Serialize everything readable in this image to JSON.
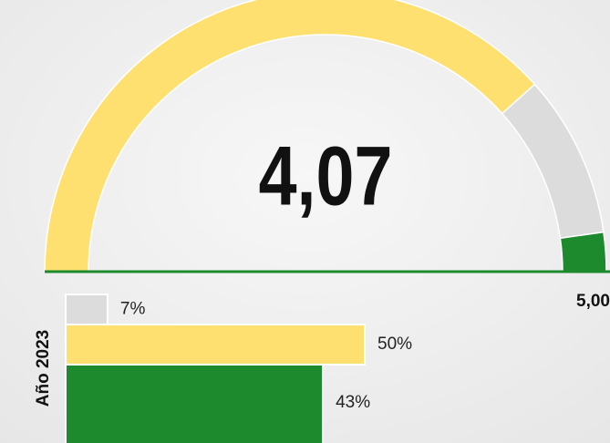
{
  "chart_data": [
    {
      "type": "gauge",
      "range": [
        1,
        5
      ],
      "value": 4.07,
      "value_label": "4,07",
      "max_label": "5,00",
      "color": "#fde06f",
      "bands": [
        {
          "to": 4.82,
          "color": "#dcdcdc"
        },
        {
          "to": 5,
          "color": "#1e8a2e"
        }
      ],
      "baseline_color": "#1e8a2e"
    },
    {
      "type": "bar",
      "series_label": "Año 2023",
      "values": [
        7,
        50,
        43
      ],
      "value_labels": [
        "7%",
        "50%",
        "43%"
      ],
      "colors": [
        "#dcdcdc",
        "#fde06f",
        "#1e8a2e"
      ],
      "xlim": [
        0,
        50
      ]
    }
  ]
}
